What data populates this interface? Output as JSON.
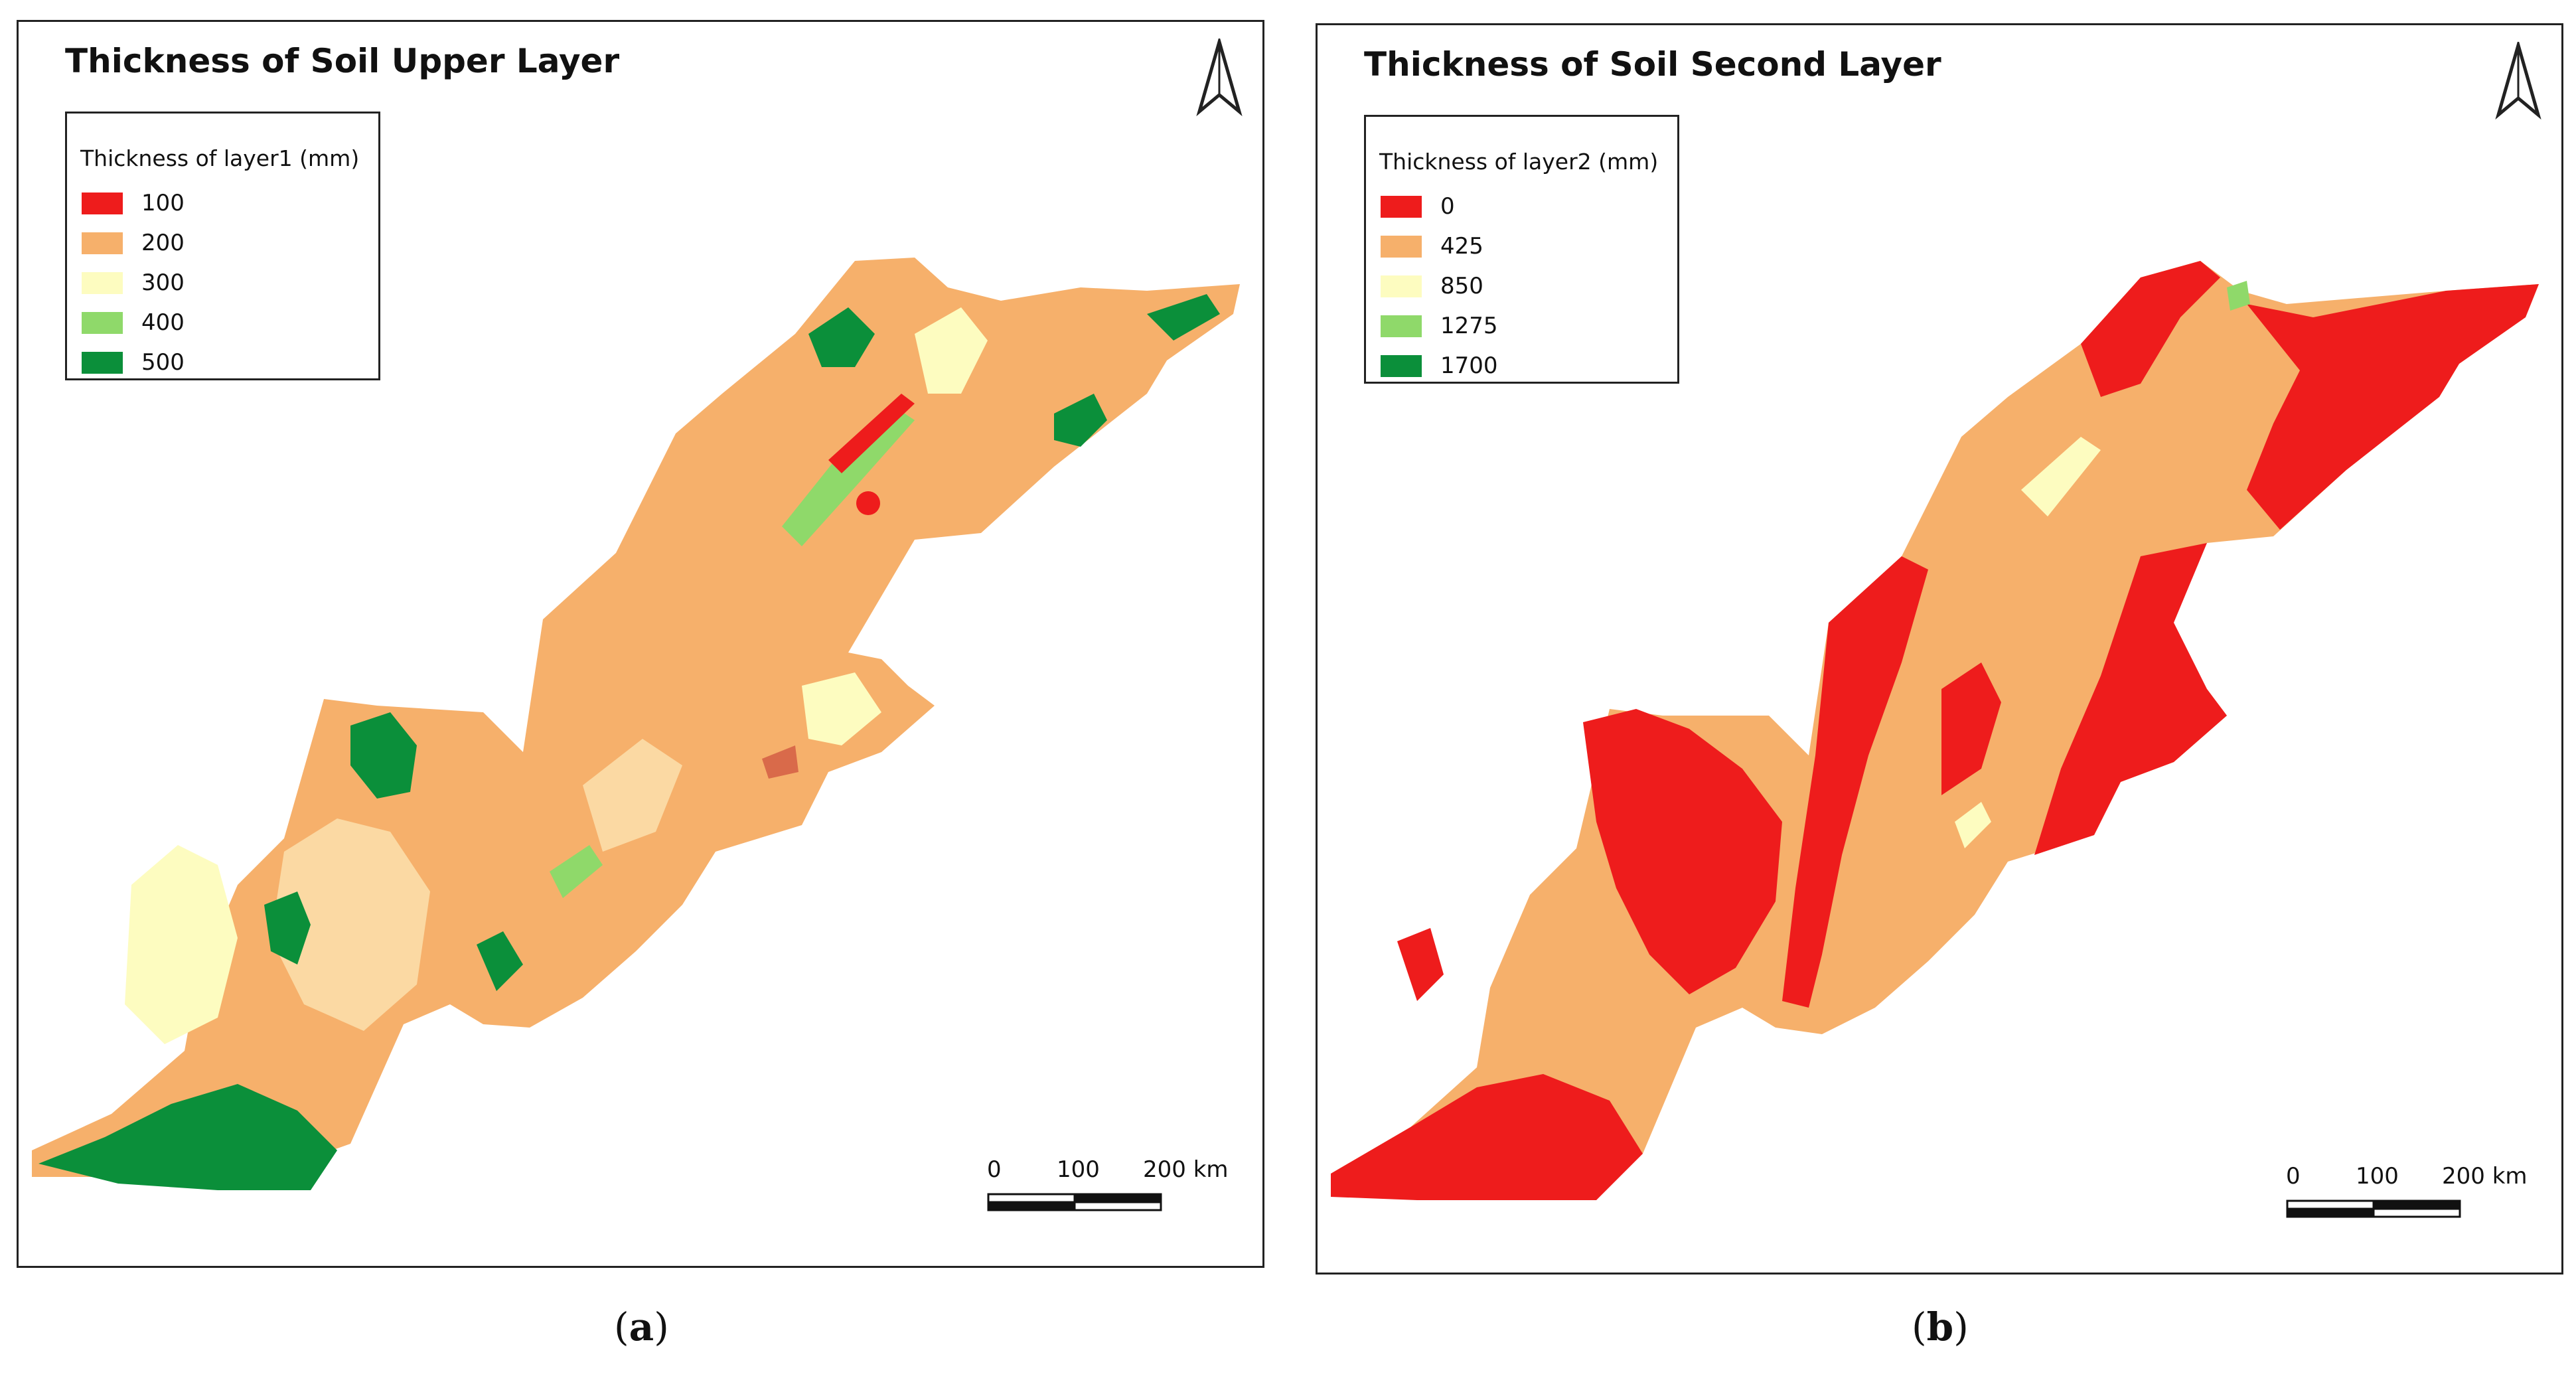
{
  "panels": [
    {
      "title": "Thickness of Soil Upper Layer",
      "legend_title": "Thickness of layer1 (mm)",
      "classes": [
        {
          "label": "100",
          "color": "#ee1c1c"
        },
        {
          "label": "200",
          "color": "#f6b06b"
        },
        {
          "label": "300",
          "color": "#fdfcc0"
        },
        {
          "label": "400",
          "color": "#8fd96a"
        },
        {
          "label": "500",
          "color": "#0b8f3a"
        }
      ],
      "scale_labels": [
        "0",
        "100",
        "200 km"
      ],
      "caption_letter": "a"
    },
    {
      "title": "Thickness of Soil Second Layer",
      "legend_title": "Thickness of layer2 (mm)",
      "classes": [
        {
          "label": "0",
          "color": "#ee1c1c"
        },
        {
          "label": "425",
          "color": "#f6b06b"
        },
        {
          "label": "850",
          "color": "#fdfcc0"
        },
        {
          "label": "1275",
          "color": "#8fd96a"
        },
        {
          "label": "1700",
          "color": "#0b8f3a"
        }
      ],
      "scale_labels": [
        "0",
        "100",
        "200 km"
      ],
      "caption_letter": "b"
    }
  ]
}
